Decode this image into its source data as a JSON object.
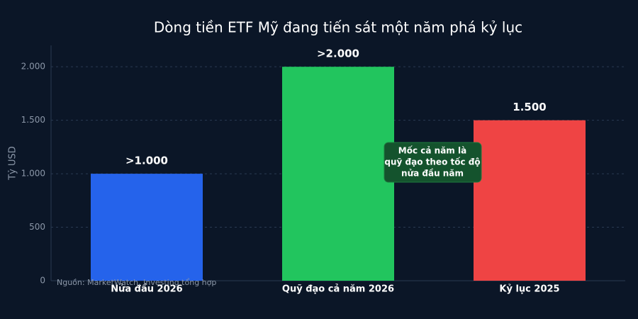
{
  "chart_data": {
    "type": "bar",
    "title": "Dòng tiền ETF Mỹ đang tiến sát một năm phá kỷ lục",
    "y_label": "Tỷ USD",
    "categories": [
      "Nửa đầu 2026",
      "Quỹ đạo cả năm 2026",
      "Kỷ lục 2025"
    ],
    "values": [
      1000,
      2000,
      1500
    ],
    "value_labels": [
      ">1.000",
      ">2.000",
      "1.500"
    ],
    "colors": [
      "#2563eb",
      "#22c55e",
      "#ef4444"
    ],
    "ylim": [
      0,
      2200
    ],
    "yticks": [
      0,
      500,
      {
        "value": 1000,
        "label": "1.000"
      },
      {
        "value": 1500,
        "label": "1.500"
      },
      {
        "value": 2000,
        "label": "2.000"
      }
    ],
    "grid": true,
    "annotation": [
      "Mốc cả năm là",
      "quỹ đạo theo tốc độ",
      "nửa đầu năm"
    ],
    "source": "Nguồn: MarketWatch, Investing tổng hợp"
  }
}
